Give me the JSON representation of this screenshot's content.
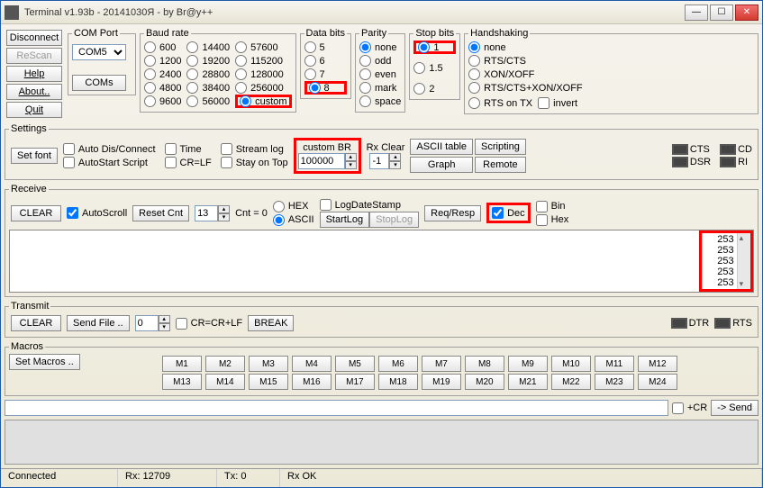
{
  "title": "Terminal v1.93b - 20141030Я - by Br@y++",
  "leftButtons": {
    "disconnect": "Disconnect",
    "rescan": "ReScan",
    "help": "Help",
    "about": "About..",
    "quit": "Quit"
  },
  "comport": {
    "legend": "COM Port",
    "selected": "COM5",
    "comsBtn": "COMs"
  },
  "baud": {
    "legend": "Baud rate",
    "col1": [
      "600",
      "1200",
      "2400",
      "4800",
      "9600"
    ],
    "col2": [
      "14400",
      "19200",
      "28800",
      "38400",
      "56000"
    ],
    "col3": [
      "57600",
      "115200",
      "128000",
      "256000",
      "custom"
    ],
    "selected": "custom"
  },
  "databits": {
    "legend": "Data bits",
    "opts": [
      "5",
      "6",
      "7",
      "8"
    ],
    "selected": "8"
  },
  "parity": {
    "legend": "Parity",
    "opts": [
      "none",
      "odd",
      "even",
      "mark",
      "space"
    ],
    "selected": "none"
  },
  "stopbits": {
    "legend": "Stop bits",
    "opts": [
      "1",
      "1.5",
      "2"
    ],
    "selected": "1"
  },
  "handshake": {
    "legend": "Handshaking",
    "opts": [
      "none",
      "RTS/CTS",
      "XON/XOFF",
      "RTS/CTS+XON/XOFF"
    ],
    "rtsontx": "RTS on TX",
    "invert": "invert",
    "selected": "none"
  },
  "settings": {
    "legend": "Settings",
    "setfont": "Set font",
    "checks": {
      "autodis": "Auto Dis/Connect",
      "autostart": "AutoStart Script",
      "time": "Time",
      "crlf": "CR=LF",
      "streamlog": "Stream log",
      "stayontop": "Stay on Top"
    },
    "custombr": {
      "label": "custom BR",
      "value": "100000"
    },
    "rxclear": {
      "label": "Rx Clear",
      "value": "-1"
    },
    "asciitable": "ASCII table",
    "graph": "Graph",
    "scripting": "Scripting",
    "remote": "Remote",
    "inds": {
      "cts": "CTS",
      "cd": "CD",
      "dsr": "DSR",
      "ri": "RI"
    }
  },
  "receive": {
    "legend": "Receive",
    "clear": "CLEAR",
    "autoscroll": "AutoScroll",
    "resetcnt": "Reset Cnt",
    "spin": "13",
    "cnt": "Cnt = 0",
    "hex": "HEX",
    "ascii": "ASCII",
    "logdatestamp": "LogDateStamp",
    "startlog": "StartLog",
    "stoplog": "StopLog",
    "reqresp": "Req/Resp",
    "dec": "Dec",
    "hex2": "Hex",
    "bin": "Bin",
    "data": [
      "253",
      "253",
      "253",
      "253",
      "253"
    ]
  },
  "transmit": {
    "legend": "Transmit",
    "clear": "CLEAR",
    "sendfile": "Send File ..",
    "spin": "0",
    "crcrlf": "CR=CR+LF",
    "break": "BREAK",
    "dtr": "DTR",
    "rts": "RTS"
  },
  "macros": {
    "legend": "Macros",
    "setmacros": "Set Macros ..",
    "m1": [
      "M1",
      "M2",
      "M3",
      "M4",
      "M5",
      "M6",
      "M7",
      "M8",
      "M9",
      "M10",
      "M11",
      "M12"
    ],
    "m2": [
      "M13",
      "M14",
      "M15",
      "M16",
      "M17",
      "M18",
      "M19",
      "M20",
      "M21",
      "M22",
      "M23",
      "M24"
    ]
  },
  "sendrow": {
    "cr": "+CR",
    "send": "-> Send"
  },
  "status": {
    "conn": "Connected",
    "rx": "Rx: 12709",
    "tx": "Tx: 0",
    "rxok": "Rx OK"
  }
}
